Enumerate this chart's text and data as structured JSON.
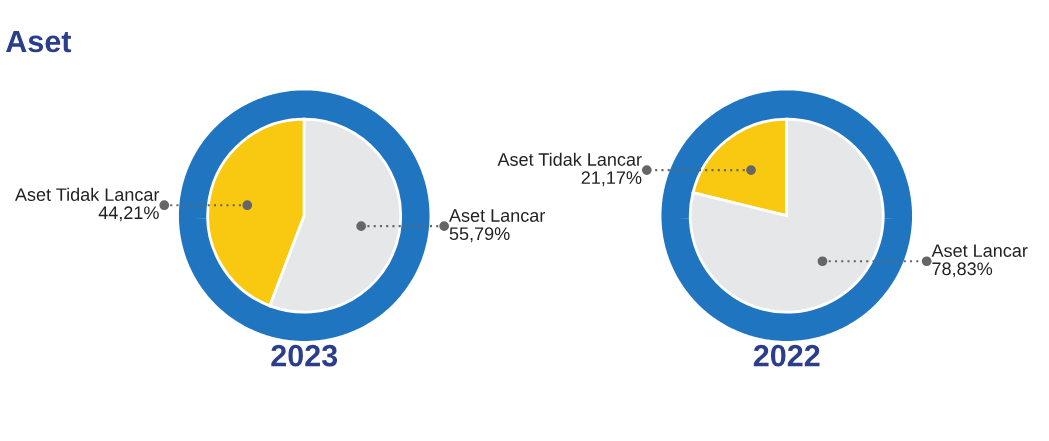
{
  "chart_data": [
    {
      "type": "pie",
      "title": "2023",
      "annotations": [
        "Aset"
      ],
      "categories": [
        "Aset Tidak Lancar",
        "Aset Lancar"
      ],
      "values": [
        44.21,
        55.79
      ],
      "colors": [
        "#f9c912",
        "#e6e7e8"
      ],
      "value_labels": [
        "44,21%",
        "55,79%"
      ]
    },
    {
      "type": "pie",
      "title": "2022",
      "categories": [
        "Aset Tidak Lancar",
        "Aset Lancar"
      ],
      "values": [
        21.17,
        78.83
      ],
      "colors": [
        "#f9c912",
        "#e6e7e8"
      ],
      "value_labels": [
        "21,17%",
        "78,83%"
      ]
    }
  ]
}
